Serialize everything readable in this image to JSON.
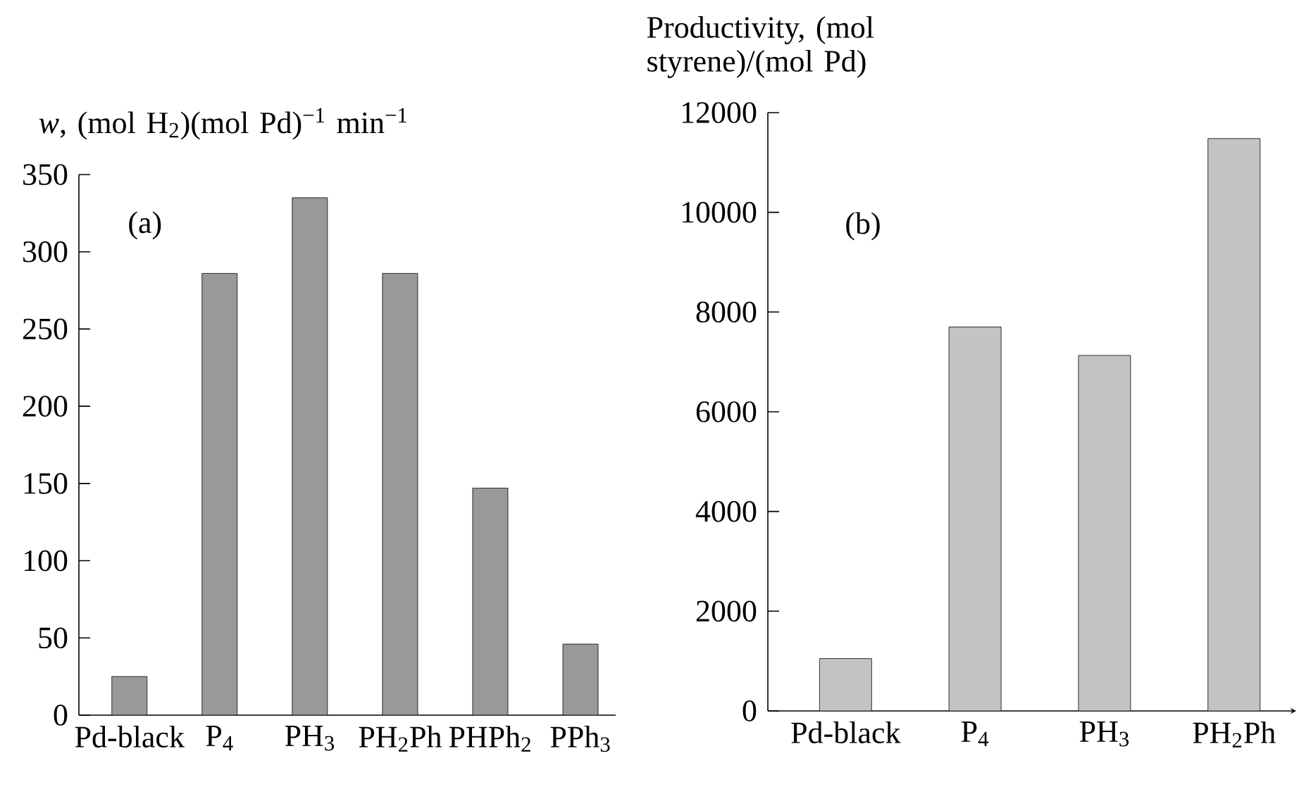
{
  "chart_data": [
    {
      "type": "bar",
      "ylabel": "*w*, (mol H$_{2}$)(mol Pd)$^{−1}$ min$^{−1}$",
      "categories": [
        "Pd-black",
        "P$_{4}$",
        "PH$_{3}$",
        "PH$_{2}$Ph",
        "PHPh$_{2}$",
        "PPh$_{3}$"
      ],
      "values": [
        25,
        286,
        335,
        286,
        147,
        46
      ],
      "color": "#999999",
      "ylim": [
        0,
        350
      ],
      "yticks": [
        0,
        50,
        100,
        150,
        200,
        250,
        300,
        350
      ],
      "annotations": [
        "(a)"
      ]
    },
    {
      "type": "bar",
      "ylabel": "Productivity, (mol styrene)/(mol Pd)",
      "categories": [
        "Pd-black",
        "P$_{4}$",
        "PH$_{3}$",
        "PH$_{2}$Ph"
      ],
      "values": [
        1050,
        7700,
        7130,
        11480
      ],
      "color": "#c3c3c3",
      "ylim": [
        0,
        12000
      ],
      "yticks": [
        0,
        2000,
        4000,
        6000,
        8000,
        10000,
        12000
      ],
      "annotations": [
        "(b)"
      ]
    }
  ]
}
